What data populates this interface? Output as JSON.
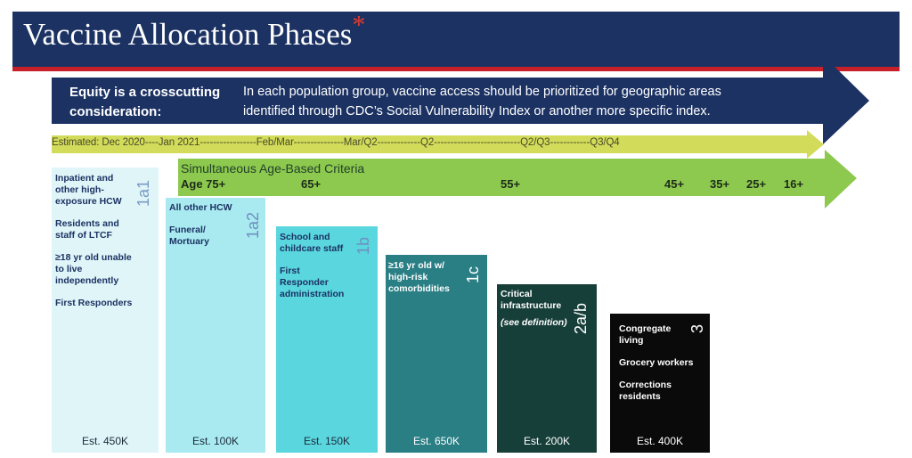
{
  "header": {
    "title": "Vaccine Allocation Phases",
    "asterisk": "*"
  },
  "equity": {
    "label_line1": "Equity is a crosscutting",
    "label_line2": "consideration:",
    "text_line1": "In each population group, vaccine access should be prioritized for geographic areas",
    "text_line2": "identified through CDC’s Social Vulnerability Index or another more specific index."
  },
  "timeline": {
    "text": "Estimated: Dec 2020----Jan 2021-----------------Feb/Mar---------------Mar/Q2-------------Q2--------------------------Q2/Q3------------Q3/Q4"
  },
  "age_criteria": {
    "title": "Simultaneous Age-Based Criteria",
    "ages": [
      "Age 75+",
      "65+",
      "55+",
      "45+",
      "35+",
      "25+",
      "16+"
    ]
  },
  "phases": [
    {
      "label": "1a1",
      "items": [
        "Inpatient and other high-exposure HCW",
        "Residents and staff of LTCF",
        "≥18 yr old unable to live independently",
        "First Responders"
      ],
      "estimate": "Est. 450K",
      "color": "#dff5f8"
    },
    {
      "label": "1a2",
      "items": [
        "All other HCW",
        "Funeral/ Mortuary"
      ],
      "estimate": "Est. 100K",
      "color": "#a8eaf0"
    },
    {
      "label": "1b",
      "items": [
        "School and childcare staff",
        "First Responder administration"
      ],
      "estimate": "Est. 150K",
      "color": "#5ad6de"
    },
    {
      "label": "1c",
      "items": [
        "≥16 yr old w/ high-risk comorbidities"
      ],
      "estimate": "Est. 650K",
      "color": "#2a7f85"
    },
    {
      "label": "2a/b",
      "items": [
        "Critical infrastructure",
        "(see definition)"
      ],
      "estimate": "Est. 200K",
      "color": "#173f3a"
    },
    {
      "label": "3",
      "items": [
        "Congregate living",
        "Grocery workers",
        "Corrections residents"
      ],
      "estimate": "Est. 400K",
      "color": "#0a0a0a"
    }
  ],
  "colors": {
    "navy": "#1c3263",
    "red": "#c8202b",
    "timeline": "#d2dc5a",
    "age_arrow": "#8cc94e"
  }
}
